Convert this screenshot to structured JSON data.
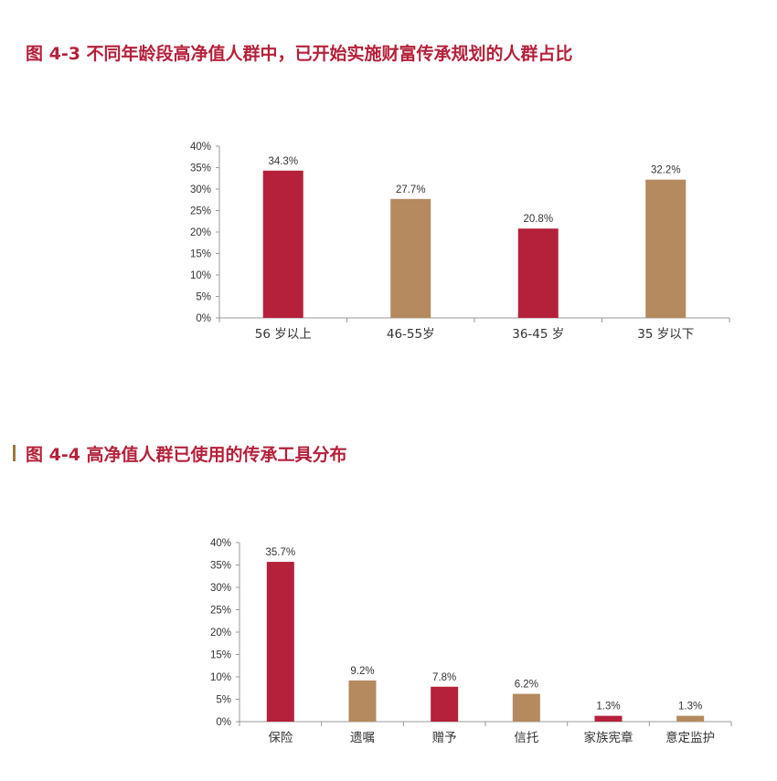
{
  "titles": {
    "fig1": "图 4-3  不同年龄段高净值人群中，已开始实施财富传承规划的人群占比",
    "fig2": "图 4-4  高净值人群已使用的传承工具分布"
  },
  "colors": {
    "red": "#b5213a",
    "tan": "#b48a5e",
    "title": "#b5213a"
  },
  "chart_data": [
    {
      "type": "bar",
      "title": "图 4-3  不同年龄段高净值人群中，已开始实施财富传承规划的人群占比",
      "categories": [
        "56 岁以上",
        "46-55岁",
        "36-45 岁",
        "35 岁以下"
      ],
      "values": [
        34.3,
        27.7,
        20.8,
        32.2
      ],
      "value_labels": [
        "34.3%",
        "27.7%",
        "20.8%",
        "32.2%"
      ],
      "bar_colors": [
        "#b5213a",
        "#b48a5e",
        "#b5213a",
        "#b48a5e"
      ],
      "y_ticks": [
        "0%",
        "5%",
        "10%",
        "15%",
        "20%",
        "25%",
        "30%",
        "35%",
        "40%"
      ],
      "ylim": [
        0,
        40
      ],
      "grid": false,
      "legend": "none"
    },
    {
      "type": "bar",
      "title": "图 4-4  高净值人群已使用的传承工具分布",
      "categories": [
        "保险",
        "遗嘱",
        "赠予",
        "信托",
        "家族宪章",
        "意定监护"
      ],
      "values": [
        35.7,
        9.2,
        7.8,
        6.2,
        1.3,
        1.3
      ],
      "value_labels": [
        "35.7%",
        "9.2%",
        "7.8%",
        "6.2%",
        "1.3%",
        "1.3%"
      ],
      "bar_colors": [
        "#b5213a",
        "#b48a5e",
        "#b5213a",
        "#b48a5e",
        "#b5213a",
        "#b48a5e"
      ],
      "y_ticks": [
        "0%",
        "5%",
        "10%",
        "15%",
        "20%",
        "25%",
        "30%",
        "35%",
        "40%"
      ],
      "ylim": [
        0,
        40
      ],
      "grid": false,
      "legend": "none"
    }
  ]
}
